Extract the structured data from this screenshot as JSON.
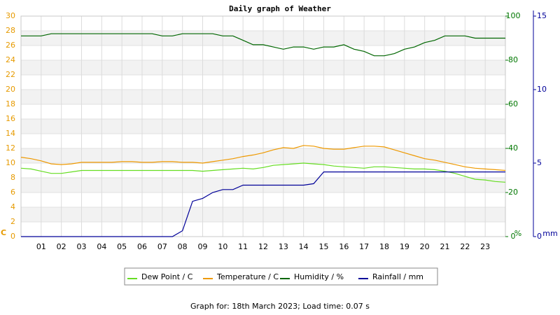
{
  "chart_data": {
    "type": "line",
    "title": "Daily graph of Weather",
    "subtitle": "Graph for: 18th March 2023; Load time: 0.07 s",
    "ylabel": "C",
    "y2label": "%",
    "y3label": "mm",
    "xlim": [
      0,
      24
    ],
    "xticks": [
      {
        "value": 1,
        "label": "01"
      },
      {
        "value": 2,
        "label": "02"
      },
      {
        "value": 3,
        "label": "03"
      },
      {
        "value": 4,
        "label": "04"
      },
      {
        "value": 5,
        "label": "05"
      },
      {
        "value": 6,
        "label": "06"
      },
      {
        "value": 7,
        "label": "07"
      },
      {
        "value": 8,
        "label": "08"
      },
      {
        "value": 9,
        "label": "09"
      },
      10,
      11,
      12,
      13,
      14,
      15,
      16,
      17,
      18,
      19,
      20,
      21,
      22,
      23
    ],
    "ylim": [
      0,
      30
    ],
    "yticks": [
      0,
      2,
      4,
      6,
      8,
      10,
      12,
      14,
      16,
      18,
      20,
      22,
      24,
      26,
      28,
      30
    ],
    "ycolor": "#e69a00",
    "y2lim": [
      0,
      100
    ],
    "y2ticks": [
      0,
      20,
      40,
      60,
      80,
      100
    ],
    "y2color": "#007700",
    "y3lim": [
      0,
      15
    ],
    "y3ticks": [
      0,
      5,
      10,
      15
    ],
    "y3color": "#000099",
    "grid": true,
    "x": [
      0,
      0.5,
      1,
      1.5,
      2,
      2.5,
      3,
      3.5,
      4,
      4.5,
      5,
      5.5,
      6,
      6.5,
      7,
      7.5,
      8,
      8.5,
      9,
      9.5,
      10,
      10.5,
      11,
      11.5,
      12,
      12.5,
      13,
      13.5,
      14,
      14.5,
      15,
      15.5,
      16,
      16.5,
      17,
      17.5,
      18,
      18.5,
      19,
      19.5,
      20,
      20.5,
      21,
      21.5,
      22,
      22.5,
      23,
      23.5,
      24
    ],
    "series": [
      {
        "name": "Dew Point / C",
        "color": "#66dd22",
        "axis": "y",
        "values": [
          9.3,
          9.2,
          8.9,
          8.6,
          8.6,
          8.8,
          9.0,
          9.0,
          9.0,
          9.0,
          9.0,
          9.0,
          9.0,
          9.0,
          9.0,
          9.0,
          9.0,
          9.0,
          8.9,
          9.0,
          9.1,
          9.2,
          9.3,
          9.2,
          9.4,
          9.7,
          9.8,
          9.9,
          10.0,
          9.9,
          9.8,
          9.6,
          9.5,
          9.4,
          9.3,
          9.5,
          9.5,
          9.4,
          9.3,
          9.2,
          9.2,
          9.1,
          8.9,
          8.6,
          8.2,
          7.8,
          7.7,
          7.5,
          7.4
        ]
      },
      {
        "name": "Temperature / C",
        "color": "#ee9900",
        "axis": "y",
        "values": [
          10.8,
          10.6,
          10.3,
          9.9,
          9.8,
          9.9,
          10.1,
          10.1,
          10.1,
          10.1,
          10.2,
          10.2,
          10.1,
          10.1,
          10.2,
          10.2,
          10.1,
          10.1,
          10.0,
          10.2,
          10.4,
          10.6,
          10.9,
          11.1,
          11.4,
          11.8,
          12.1,
          12.0,
          12.4,
          12.3,
          12.0,
          11.9,
          11.9,
          12.1,
          12.3,
          12.3,
          12.2,
          11.8,
          11.4,
          11.0,
          10.6,
          10.4,
          10.1,
          9.8,
          9.5,
          9.3,
          9.2,
          9.1,
          9.0
        ]
      },
      {
        "name": "Humidity / %",
        "color": "#006600",
        "axis": "y2",
        "values": [
          91,
          91,
          91,
          92,
          92,
          92,
          92,
          92,
          92,
          92,
          92,
          92,
          92,
          92,
          91,
          91,
          92,
          92,
          92,
          92,
          91,
          91,
          89,
          87,
          87,
          86,
          85,
          86,
          86,
          85,
          86,
          86,
          87,
          85,
          84,
          82,
          82,
          83,
          85,
          86,
          88,
          89,
          91,
          91,
          91,
          90,
          90,
          90,
          90
        ]
      },
      {
        "name": "Rainfall / mm",
        "color": "#000099",
        "axis": "y3",
        "values": [
          0,
          0,
          0,
          0,
          0,
          0,
          0,
          0,
          0,
          0,
          0,
          0,
          0,
          0,
          0,
          0,
          0.4,
          2.4,
          2.6,
          3.0,
          3.2,
          3.2,
          3.5,
          3.5,
          3.5,
          3.5,
          3.5,
          3.5,
          3.5,
          3.6,
          4.4,
          4.4,
          4.4,
          4.4,
          4.4,
          4.4,
          4.4,
          4.4,
          4.4,
          4.4,
          4.4,
          4.4,
          4.4,
          4.4,
          4.4,
          4.4,
          4.4,
          4.4,
          4.4
        ]
      }
    ]
  }
}
